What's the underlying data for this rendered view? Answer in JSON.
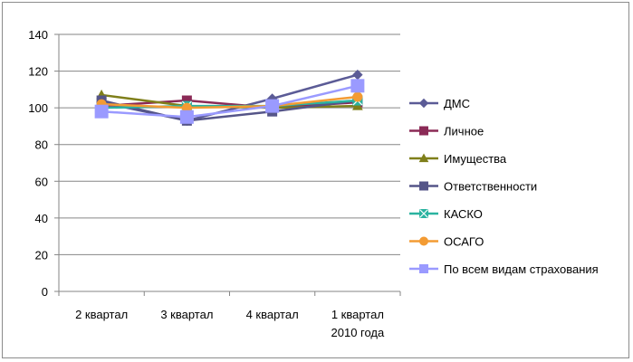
{
  "chart_data": {
    "type": "line",
    "categories": [
      [
        "2 квартал"
      ],
      [
        "3 квартал"
      ],
      [
        "4 квартал"
      ],
      [
        "1 квартал",
        "2010 года"
      ]
    ],
    "ylim": [
      0,
      140
    ],
    "yticks": [
      0,
      20,
      40,
      60,
      80,
      100,
      120,
      140
    ],
    "grid": true,
    "legend_position": "right",
    "series": [
      {
        "name": "ДМС",
        "color": "#5b5b96",
        "marker": "diamond",
        "values": [
          103,
          93,
          105,
          118
        ]
      },
      {
        "name": "Личное",
        "color": "#8b2a56",
        "marker": "square",
        "values": [
          101,
          104,
          100,
          103
        ]
      },
      {
        "name": "Имущества",
        "color": "#7f7f1a",
        "marker": "triangle",
        "values": [
          107,
          101,
          100,
          101
        ]
      },
      {
        "name": "Ответственности",
        "color": "#555588",
        "marker": "square",
        "values": [
          104,
          93,
          98,
          104
        ]
      },
      {
        "name": "КАСКО",
        "color": "#2ab3a0",
        "marker": "x-square",
        "values": [
          100,
          101,
          101,
          104
        ]
      },
      {
        "name": "ОСАГО",
        "color": "#f39b33",
        "marker": "circle",
        "values": [
          102,
          100,
          101,
          106
        ]
      },
      {
        "name": "По всем видам страхования",
        "color": "#9a9aff",
        "marker": "square",
        "values": [
          98,
          95,
          101,
          112
        ]
      }
    ]
  }
}
